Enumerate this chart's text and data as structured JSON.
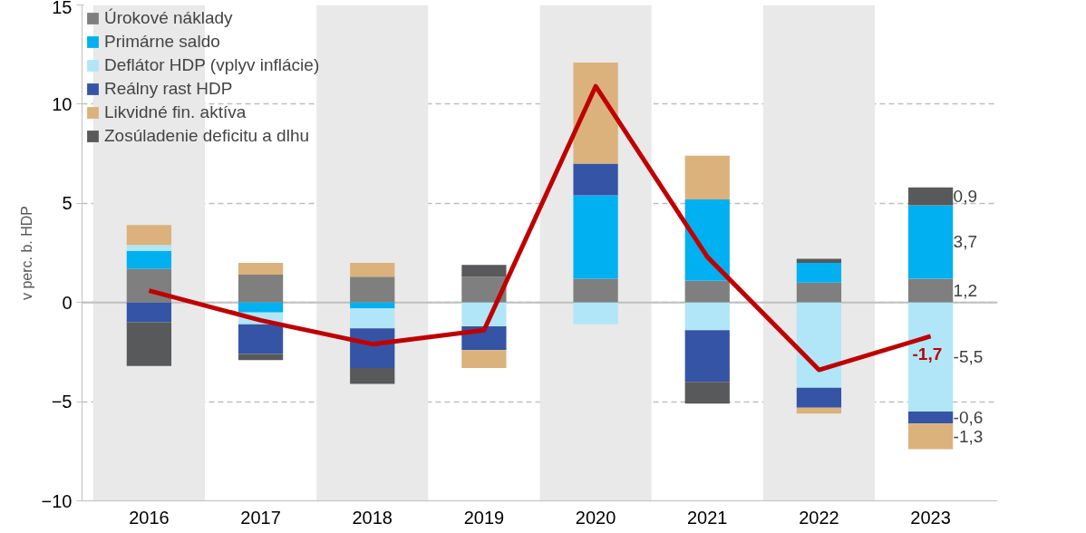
{
  "chart_data": {
    "type": "bar",
    "stacked": true,
    "ylabel": "v perc. b. HDP",
    "categories": [
      "2016",
      "2017",
      "2018",
      "2019",
      "2020",
      "2021",
      "2022",
      "2023"
    ],
    "series": [
      {
        "name": "Úrokové náklady",
        "color": "#7f7f7f",
        "values": [
          1.7,
          1.4,
          1.3,
          1.3,
          1.2,
          1.1,
          1.0,
          1.2
        ],
        "value_labels": [
          null,
          null,
          null,
          null,
          null,
          null,
          null,
          "1,2"
        ]
      },
      {
        "name": "Primárne saldo",
        "color": "#00b0f0",
        "values": [
          0.9,
          -0.5,
          -0.3,
          null,
          4.2,
          4.1,
          1.0,
          3.7
        ],
        "value_labels": [
          null,
          null,
          null,
          null,
          null,
          null,
          null,
          "3,7"
        ]
      },
      {
        "name": "Deflátor HDP (vplyv inflácie)",
        "color": "#b0e6f7",
        "values": [
          0.3,
          -0.6,
          -1.0,
          -1.2,
          -1.1,
          -1.4,
          -4.3,
          -5.5
        ],
        "value_labels": [
          null,
          null,
          null,
          null,
          null,
          null,
          null,
          "-5,5"
        ]
      },
      {
        "name": "Reálny rast HDP",
        "color": "#3654a5",
        "values": [
          -1.0,
          -1.5,
          -2.0,
          -1.2,
          1.6,
          -2.6,
          -1.0,
          -0.6
        ],
        "value_labels": [
          null,
          null,
          null,
          null,
          null,
          null,
          null,
          "-0,6"
        ]
      },
      {
        "name": "Likvidné fin. aktíva",
        "color": "#dbb27b",
        "values": [
          1.0,
          0.6,
          0.7,
          -0.9,
          5.1,
          2.2,
          -0.3,
          -1.3
        ],
        "value_labels": [
          null,
          null,
          null,
          null,
          null,
          null,
          null,
          "-1,3"
        ]
      },
      {
        "name": "Zosúladenie deficitu a dlhu",
        "color": "#58595b",
        "values": [
          -2.2,
          -0.3,
          -0.8,
          0.6,
          null,
          -1.1,
          0.2,
          0.9
        ],
        "value_labels": [
          null,
          null,
          null,
          null,
          null,
          null,
          null,
          "0,9"
        ]
      },
      {
        "type": "line",
        "color": "#c00000",
        "values": [
          0.6,
          -0.9,
          -2.1,
          -1.4,
          10.9,
          2.3,
          -3.4,
          -1.7
        ],
        "value_labels": [
          null,
          null,
          null,
          null,
          null,
          null,
          null,
          "-1,7"
        ]
      }
    ],
    "ylim": [
      -10,
      15
    ],
    "yticks": [
      -10,
      -5,
      0,
      5,
      10,
      15
    ],
    "grid": "y",
    "legend": "top left",
    "bands": [
      {
        "axis": "x",
        "from": "2016",
        "to": "2016",
        "color": "#e9e9e9"
      },
      {
        "axis": "x",
        "from": "2018",
        "to": "2018",
        "color": "#e9e9e9"
      },
      {
        "axis": "x",
        "from": "2020",
        "to": "2020",
        "color": "#e9e9e9"
      },
      {
        "axis": "x",
        "from": "2022",
        "to": "2022",
        "color": "#e9e9e9"
      }
    ]
  }
}
